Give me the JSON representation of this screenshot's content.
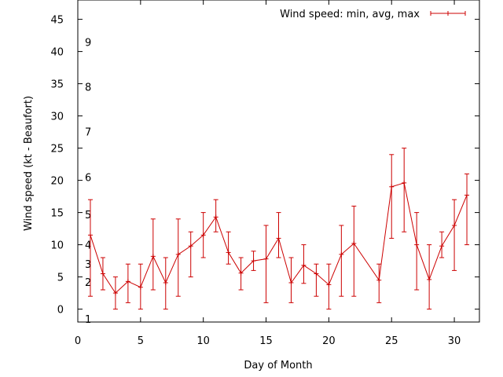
{
  "chart_data": {
    "type": "line",
    "xlabel": "Day of Month",
    "ylabel": "Wind speed (kt - Beaufort)",
    "xlim": [
      0,
      32
    ],
    "ylim": [
      -2,
      48
    ],
    "x_ticks": [
      "0",
      "5",
      "10",
      "15",
      "20",
      "25",
      "30"
    ],
    "y_ticks": [
      "0",
      "5",
      "10",
      "15",
      "20",
      "25",
      "30",
      "35",
      "40",
      "45"
    ],
    "grid": false,
    "legend_position": "top-right",
    "series": [
      {
        "name": "Wind speed: min, avg, max",
        "color": "#cc0000",
        "x": [
          1,
          2,
          3,
          4,
          5,
          6,
          7,
          8,
          9,
          10,
          11,
          12,
          13,
          14,
          15,
          16,
          17,
          18,
          19,
          20,
          21,
          22,
          24,
          25,
          26,
          27,
          28,
          29,
          30,
          31
        ],
        "avg": [
          11.5,
          5.5,
          2.5,
          4.3,
          3.4,
          8.2,
          4.1,
          8.5,
          9.8,
          11.5,
          14.3,
          8.8,
          5.6,
          7.5,
          7.8,
          11,
          4.1,
          6.8,
          5.5,
          3.8,
          8.5,
          10.2,
          4.5,
          19,
          19.6,
          10,
          4.6,
          9.8,
          13,
          17.7
        ],
        "min": [
          2,
          3,
          0,
          1,
          0,
          3,
          0,
          2,
          5,
          8,
          12,
          7,
          3,
          6,
          1,
          8,
          1,
          4,
          2,
          0,
          2,
          2,
          1,
          11,
          12,
          3,
          0,
          8,
          6,
          10
        ],
        "max": [
          17,
          8,
          5,
          7,
          7,
          14,
          8,
          14,
          12,
          15,
          17,
          12,
          8,
          9,
          13,
          15,
          8,
          10,
          7,
          7,
          13,
          16,
          7,
          24,
          25,
          15,
          10,
          12,
          17,
          21
        ]
      }
    ],
    "beaufort_scale": [
      "1",
      "2",
      "3",
      "4",
      "5",
      "6",
      "7",
      "8",
      "9"
    ]
  }
}
